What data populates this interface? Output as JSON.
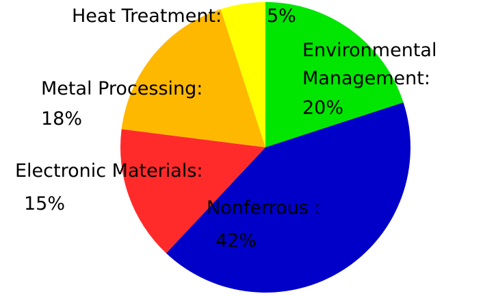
{
  "chart_data": {
    "type": "pie",
    "categories": [
      "Environmental Management:",
      "Nonferrous :",
      "Electronic Materials:",
      "Metal Processing:",
      "Heat Treatment:"
    ],
    "values": [
      20,
      42,
      15,
      18,
      5
    ],
    "value_labels": [
      "20%",
      "42%",
      "15%",
      "18%",
      "5%"
    ],
    "colors": [
      "#00e600",
      "#0000c8",
      "#ff2b2b",
      "#ffb800",
      "#ffff00"
    ]
  }
}
